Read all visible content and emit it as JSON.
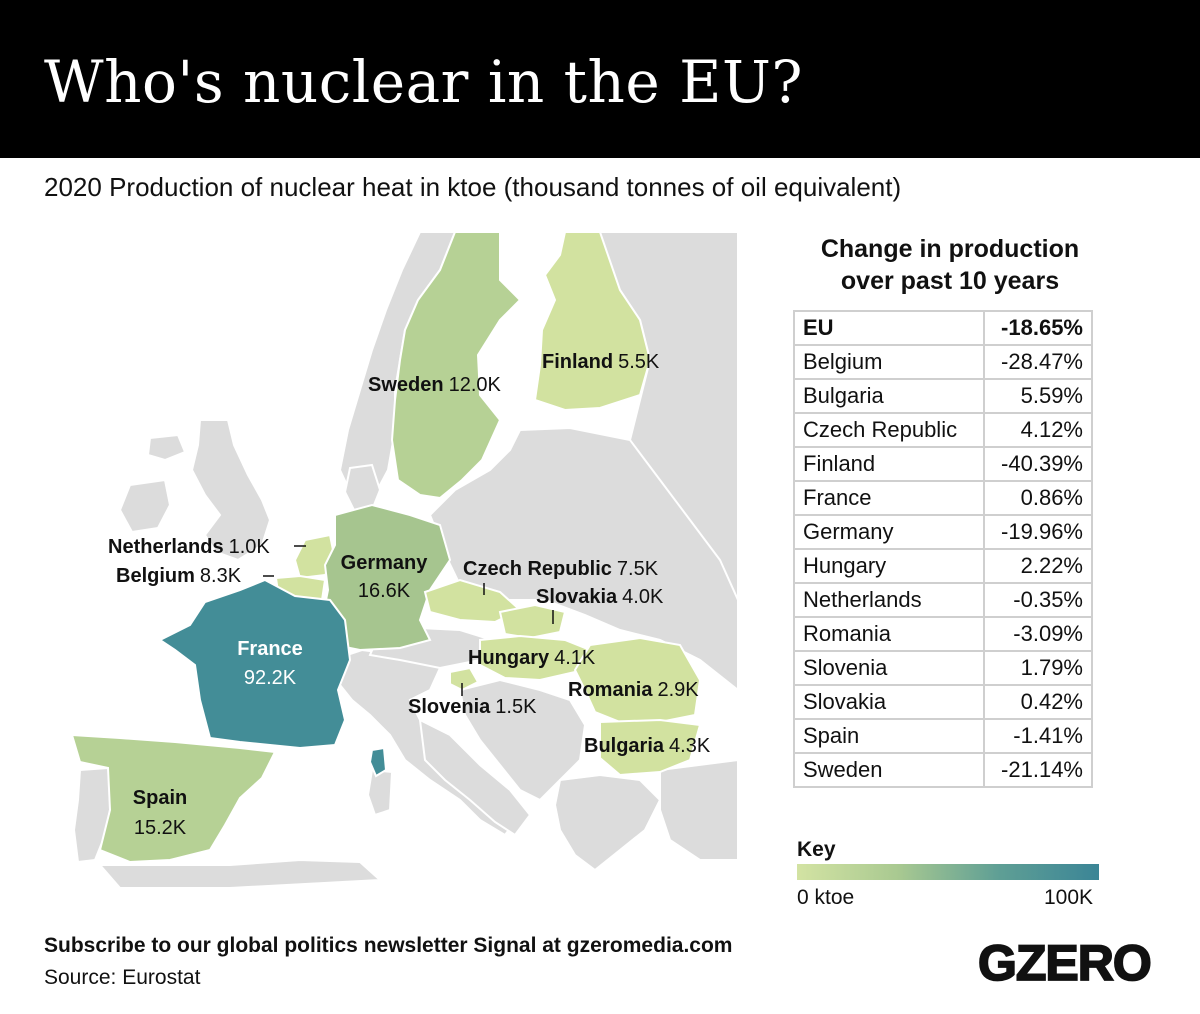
{
  "header": {
    "title": "Who's nuclear in the EU?"
  },
  "subtitle": "2020 Production of nuclear heat in ktoe (thousand tonnes of oil equivalent)",
  "map": {
    "countries": [
      {
        "name": "Sweden",
        "value": "12.0K"
      },
      {
        "name": "Finland",
        "value": "5.5K"
      },
      {
        "name": "Netherlands",
        "value": "1.0K"
      },
      {
        "name": "Belgium",
        "value": "8.3K"
      },
      {
        "name": "Germany",
        "value": "16.6K"
      },
      {
        "name": "Czech Republic",
        "value": "7.5K"
      },
      {
        "name": "Slovakia",
        "value": "4.0K"
      },
      {
        "name": "France",
        "value": "92.2K"
      },
      {
        "name": "Hungary",
        "value": "4.1K"
      },
      {
        "name": "Romania",
        "value": "2.9K"
      },
      {
        "name": "Slovenia",
        "value": "1.5K"
      },
      {
        "name": "Bulgaria",
        "value": "4.3K"
      },
      {
        "name": "Spain",
        "value": "15.2K"
      }
    ]
  },
  "table": {
    "heading_line1": "Change in production",
    "heading_line2": "over past 10 years",
    "rows": [
      {
        "country": "EU",
        "change": "-18.65%"
      },
      {
        "country": "Belgium",
        "change": "-28.47%"
      },
      {
        "country": "Bulgaria",
        "change": "5.59%"
      },
      {
        "country": "Czech Republic",
        "change": "4.12%"
      },
      {
        "country": "Finland",
        "change": "-40.39%"
      },
      {
        "country": "France",
        "change": "0.86%"
      },
      {
        "country": "Germany",
        "change": "-19.96%"
      },
      {
        "country": "Hungary",
        "change": "2.22%"
      },
      {
        "country": "Netherlands",
        "change": "-0.35%"
      },
      {
        "country": "Romania",
        "change": "-3.09%"
      },
      {
        "country": "Slovenia",
        "change": "1.79%"
      },
      {
        "country": "Slovakia",
        "change": "0.42%"
      },
      {
        "country": "Spain",
        "change": "-1.41%"
      },
      {
        "country": "Sweden",
        "change": "-21.14%"
      }
    ]
  },
  "key": {
    "title": "Key",
    "min_label": "0 ktoe",
    "max_label": "100K",
    "colors": [
      "#d3e3a3",
      "#3b8596"
    ]
  },
  "colors": {
    "neutral_land": "#dcdcdc",
    "light_green": "#d2e2a0",
    "mid_green": "#b6d195",
    "dark_green": "#a6c58f",
    "france_teal": "#438d97"
  },
  "footer": {
    "cta": "Subscribe to our global politics newsletter Signal at gzeromedia.com",
    "source": "Source: Eurostat"
  },
  "logo": {
    "text": "GZERO"
  }
}
